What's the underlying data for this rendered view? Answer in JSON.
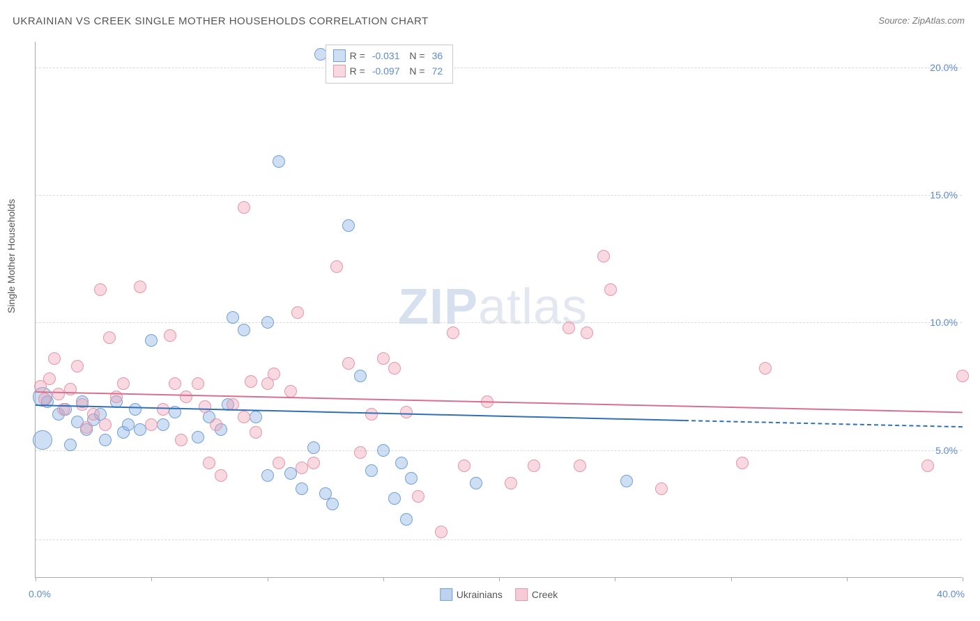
{
  "title": "UKRAINIAN VS CREEK SINGLE MOTHER HOUSEHOLDS CORRELATION CHART",
  "source_label": "Source:",
  "source_value": "ZipAtlas.com",
  "ylabel": "Single Mother Households",
  "watermark_a": "ZIP",
  "watermark_b": "atlas",
  "chart": {
    "type": "scatter",
    "xlim": [
      0,
      40
    ],
    "ylim": [
      0,
      21
    ],
    "y_gridlines": [
      1.5,
      5,
      10,
      15,
      20
    ],
    "y_tick_labels": {
      "5": "5.0%",
      "10": "10.0%",
      "15": "15.0%",
      "20": "20.0%"
    },
    "x_tick_positions": [
      0,
      5,
      10,
      15,
      20,
      25,
      30,
      35,
      40
    ],
    "x_tick_labels": {
      "0": "0.0%",
      "40": "40.0%"
    },
    "background_color": "#ffffff",
    "grid_color": "#d9d9d9",
    "axis_color": "#aaaaaa",
    "label_color": "#5b8bd4",
    "point_radius": 9,
    "point_border_width": 1.5,
    "series": [
      {
        "name": "Ukrainians",
        "fill": "rgba(135,175,225,0.40)",
        "stroke": "#6f9fd8",
        "trend_color": "#2f6fb5",
        "R": "-0.031",
        "N": "36",
        "trend": {
          "x1": 0,
          "y1": 6.8,
          "x2": 28,
          "y2": 6.2,
          "dash_after_x": 28,
          "dash_x2": 40,
          "dash_y2": 5.95
        },
        "points": [
          [
            0.3,
            7.1,
            14
          ],
          [
            0.3,
            5.4,
            14
          ],
          [
            0.5,
            6.9
          ],
          [
            1.0,
            6.4
          ],
          [
            1.3,
            6.6
          ],
          [
            1.5,
            5.2
          ],
          [
            1.8,
            6.1
          ],
          [
            2.2,
            5.8
          ],
          [
            2.0,
            6.9
          ],
          [
            2.5,
            6.2
          ],
          [
            2.8,
            6.4
          ],
          [
            3.0,
            5.4
          ],
          [
            3.5,
            6.9
          ],
          [
            3.8,
            5.7
          ],
          [
            4.0,
            6.0
          ],
          [
            4.3,
            6.6
          ],
          [
            4.5,
            5.8
          ],
          [
            5.0,
            9.3
          ],
          [
            5.5,
            6.0
          ],
          [
            6.0,
            6.5
          ],
          [
            7.0,
            5.5
          ],
          [
            7.5,
            6.3
          ],
          [
            8.0,
            5.8
          ],
          [
            8.3,
            6.8
          ],
          [
            8.5,
            10.2
          ],
          [
            9.0,
            9.7
          ],
          [
            9.5,
            6.3
          ],
          [
            10.0,
            10.0
          ],
          [
            10.0,
            4.0
          ],
          [
            10.5,
            16.3
          ],
          [
            11.0,
            4.1
          ],
          [
            11.5,
            3.5
          ],
          [
            12.0,
            5.1
          ],
          [
            12.3,
            20.5
          ],
          [
            12.5,
            3.3
          ],
          [
            12.8,
            2.9
          ],
          [
            13.5,
            13.8
          ],
          [
            14.0,
            7.9
          ],
          [
            14.5,
            4.2
          ],
          [
            15.0,
            5.0
          ],
          [
            15.5,
            3.1
          ],
          [
            15.8,
            4.5
          ],
          [
            16.0,
            2.3
          ],
          [
            16.2,
            3.9
          ],
          [
            19.0,
            3.7
          ],
          [
            25.5,
            3.8
          ]
        ]
      },
      {
        "name": "Creek",
        "fill": "rgba(240,160,180,0.40)",
        "stroke": "#e495a8",
        "trend_color": "#d86f8e",
        "R": "-0.097",
        "N": "72",
        "trend": {
          "x1": 0,
          "y1": 7.3,
          "x2": 40,
          "y2": 6.5
        },
        "points": [
          [
            0.2,
            7.5
          ],
          [
            0.4,
            7.0
          ],
          [
            0.6,
            7.8
          ],
          [
            0.8,
            8.6
          ],
          [
            1.0,
            7.2
          ],
          [
            1.2,
            6.6
          ],
          [
            1.5,
            7.4
          ],
          [
            1.8,
            8.3
          ],
          [
            2.0,
            6.8
          ],
          [
            2.2,
            5.9
          ],
          [
            2.5,
            6.4
          ],
          [
            2.8,
            11.3
          ],
          [
            3.0,
            6.0
          ],
          [
            3.2,
            9.4
          ],
          [
            3.5,
            7.1
          ],
          [
            3.8,
            7.6
          ],
          [
            4.5,
            11.4
          ],
          [
            5.0,
            6.0
          ],
          [
            5.5,
            6.6
          ],
          [
            5.8,
            9.5
          ],
          [
            6.0,
            7.6
          ],
          [
            6.3,
            5.4
          ],
          [
            6.5,
            7.1
          ],
          [
            7.0,
            7.6
          ],
          [
            7.3,
            6.7
          ],
          [
            7.5,
            4.5
          ],
          [
            7.8,
            6.0
          ],
          [
            8.0,
            4.0
          ],
          [
            8.5,
            6.8
          ],
          [
            9.0,
            14.5
          ],
          [
            9.0,
            6.3
          ],
          [
            9.3,
            7.7
          ],
          [
            9.5,
            5.7
          ],
          [
            10.0,
            7.6
          ],
          [
            10.3,
            8.0
          ],
          [
            10.5,
            4.5
          ],
          [
            11.0,
            7.3
          ],
          [
            11.3,
            10.4
          ],
          [
            11.5,
            4.3
          ],
          [
            12.0,
            4.5
          ],
          [
            13.0,
            12.2
          ],
          [
            13.5,
            8.4
          ],
          [
            14.0,
            4.9
          ],
          [
            14.5,
            6.4
          ],
          [
            15.0,
            8.6
          ],
          [
            15.5,
            8.2
          ],
          [
            16.0,
            6.5
          ],
          [
            16.5,
            3.2
          ],
          [
            17.5,
            1.8
          ],
          [
            18.0,
            9.6
          ],
          [
            18.5,
            4.4
          ],
          [
            19.5,
            6.9
          ],
          [
            20.5,
            3.7
          ],
          [
            21.5,
            4.4
          ],
          [
            23.0,
            9.8
          ],
          [
            23.5,
            4.4
          ],
          [
            23.8,
            9.6
          ],
          [
            24.5,
            12.6
          ],
          [
            24.8,
            11.3
          ],
          [
            27.0,
            3.5
          ],
          [
            30.5,
            4.5
          ],
          [
            31.5,
            8.2
          ],
          [
            38.5,
            4.4
          ],
          [
            40.0,
            7.9
          ]
        ]
      }
    ]
  },
  "legend_bottom": [
    {
      "label": "Ukrainians",
      "fill": "rgba(135,175,225,0.55)",
      "stroke": "#6f9fd8"
    },
    {
      "label": "Creek",
      "fill": "rgba(240,160,180,0.55)",
      "stroke": "#e495a8"
    }
  ]
}
